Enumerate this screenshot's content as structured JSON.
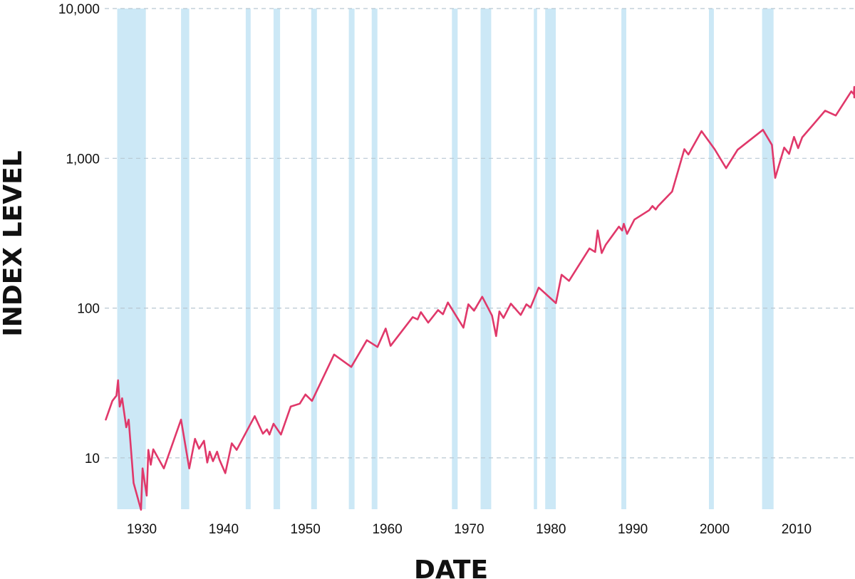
{
  "chart_data": {
    "type": "line",
    "xlabel": "DATE",
    "ylabel": "INDEX LEVEL",
    "yscale": "log",
    "ylim": [
      4.5,
      10000
    ],
    "xlim": [
      1925.5,
      2017.4
    ],
    "x_ticks": [
      1930,
      1940,
      1950,
      1960,
      1970,
      1980,
      1990,
      2000,
      2010
    ],
    "x_tick_labels": [
      "1930",
      "1940",
      "1950",
      "1960",
      "1970",
      "1980",
      "1990",
      "2000",
      "2010"
    ],
    "y_ticks": [
      10,
      100,
      1000,
      10000
    ],
    "y_tick_labels": [
      "10",
      "100",
      "1,000",
      "10,000"
    ],
    "grid": "horizontal-dashed",
    "legend": "none",
    "colors": {
      "line": "#e0386a",
      "shade": "#cce8f6",
      "grid": "#b8c7d2",
      "text": "#111111"
    },
    "shaded_periods": [
      [
        1927.0,
        1930.5
      ],
      [
        1934.8,
        1935.8
      ],
      [
        1942.7,
        1943.3
      ],
      [
        1946.1,
        1946.9
      ],
      [
        1950.7,
        1951.4
      ],
      [
        1955.3,
        1956.0
      ],
      [
        1958.1,
        1958.8
      ],
      [
        1967.9,
        1968.6
      ],
      [
        1971.4,
        1972.7
      ],
      [
        1977.9,
        1978.3
      ],
      [
        1979.3,
        1980.6
      ],
      [
        1988.6,
        1989.2
      ],
      [
        1999.3,
        1999.9
      ],
      [
        2005.8,
        2007.2
      ]
    ],
    "series": [
      {
        "x": [
          1925.6,
          1926.4,
          1926.9,
          1927.1,
          1927.3,
          1927.6,
          1928.1,
          1928.4,
          1929.0,
          1929.9,
          1930.1,
          1930.6,
          1930.8,
          1931.1,
          1931.4,
          1932.7,
          1934.8,
          1935.8,
          1936.5,
          1937.0,
          1937.6,
          1938.0,
          1938.3,
          1938.7,
          1939.2,
          1939.5,
          1940.2,
          1941.0,
          1941.6,
          1943.8,
          1944.8,
          1945.3,
          1945.6,
          1946.1,
          1947.0,
          1948.2,
          1949.3,
          1950.0,
          1950.8,
          1953.5,
          1955.6,
          1957.5,
          1958.8,
          1959.8,
          1960.4,
          1963.1,
          1963.7,
          1964.1,
          1965.0,
          1966.2,
          1966.8,
          1967.4,
          1969.3,
          1969.9,
          1970.6,
          1971.6,
          1972.8,
          1973.3,
          1973.7,
          1974.2,
          1975.1,
          1976.3,
          1977.0,
          1977.5,
          1978.5,
          1980.6,
          1981.3,
          1982.2,
          1984.7,
          1985.4,
          1985.7,
          1986.2,
          1986.7,
          1987.6,
          1988.3,
          1988.7,
          1988.9,
          1989.3,
          1990.2,
          1992.0,
          1992.4,
          1992.8,
          1993.1,
          1994.8,
          1996.3,
          1996.8,
          1998.4,
          2000.0,
          2001.4,
          2002.8,
          2005.9,
          2007.0,
          2007.4,
          2008.5,
          2009.1,
          2009.7,
          2010.2,
          2010.7,
          2013.5,
          2014.8,
          2016.7,
          2017.0,
          2017.4,
          2017.9
        ],
        "values": [
          18,
          24,
          26,
          33,
          22,
          25,
          16,
          18,
          6.8,
          4.5,
          8.5,
          5.6,
          11.3,
          9.0,
          11.4,
          8.5,
          18,
          8.5,
          13.4,
          11.5,
          13,
          9.3,
          11,
          9.5,
          11,
          9.7,
          7.9,
          12.5,
          11.3,
          19,
          14.5,
          15.5,
          14.3,
          16.9,
          14.3,
          22,
          23,
          26.5,
          24,
          49,
          40.5,
          61,
          55,
          73,
          56,
          87,
          84,
          94,
          80,
          97,
          91,
          109,
          74,
          106,
          96,
          119,
          89,
          65,
          95,
          86,
          107,
          90,
          106,
          101,
          137,
          108,
          167,
          152,
          250,
          237,
          330,
          233,
          265,
          310,
          350,
          330,
          365,
          313,
          390,
          450,
          480,
          455,
          480,
          600,
          1150,
          1060,
          1520,
          1150,
          860,
          1140,
          1550,
          1230,
          740,
          1180,
          1070,
          1390,
          1170,
          1380,
          2080,
          1930,
          2800,
          2680,
          3000,
          2550
        ]
      }
    ]
  }
}
